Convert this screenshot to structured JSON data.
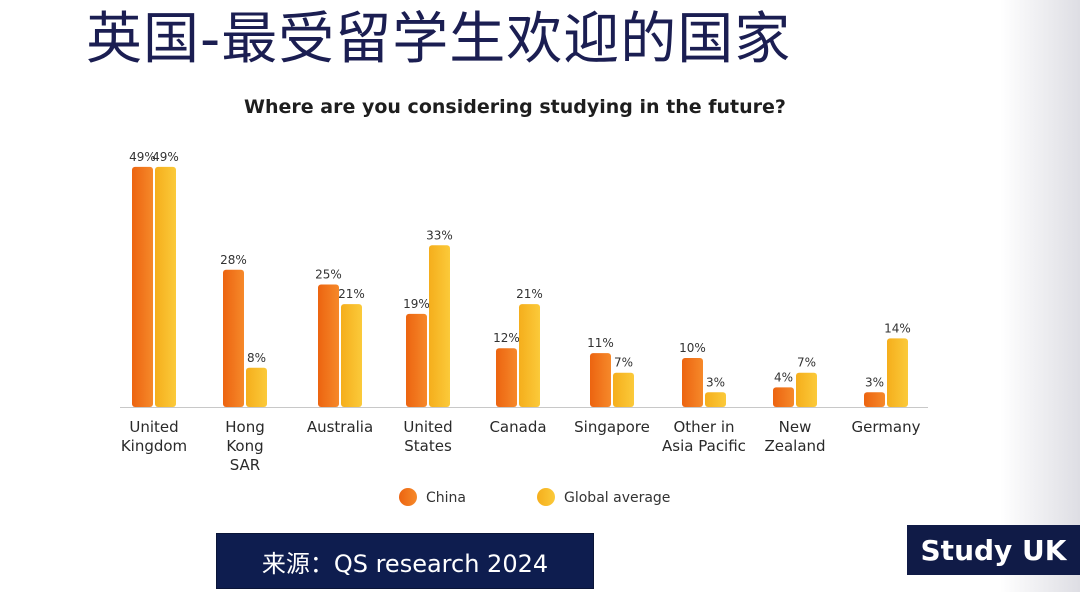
{
  "slide": {
    "title": "英国-最受留学生欢迎的国家",
    "source": "来源：QS research 2024",
    "logo": "Study UK"
  },
  "colors": {
    "china": "#ec6410",
    "china_light": "#f6892a",
    "global": "#f5ae1c",
    "global_light": "#fbca3a",
    "title": "#1b1e52",
    "navy": "#0e1d4f"
  },
  "chart_data": {
    "type": "bar",
    "title": "Where are you considering studying in the future?",
    "categories": [
      [
        "United",
        "Kingdom"
      ],
      [
        "Hong",
        "Kong",
        "SAR"
      ],
      [
        "Australia"
      ],
      [
        "United",
        "States"
      ],
      [
        "Canada"
      ],
      [
        "Singapore"
      ],
      [
        "Other in",
        "Asia Pacific"
      ],
      [
        "New",
        "Zealand"
      ],
      [
        "Germany"
      ]
    ],
    "series": [
      {
        "name": "China",
        "values": [
          49,
          28,
          25,
          19,
          12,
          11,
          10,
          4,
          3
        ]
      },
      {
        "name": "Global average",
        "values": [
          49,
          8,
          21,
          33,
          21,
          7,
          3,
          7,
          14
        ]
      }
    ],
    "value_suffix": "%",
    "ylim": [
      0,
      50
    ],
    "grid": false,
    "legend_position": "bottom"
  }
}
